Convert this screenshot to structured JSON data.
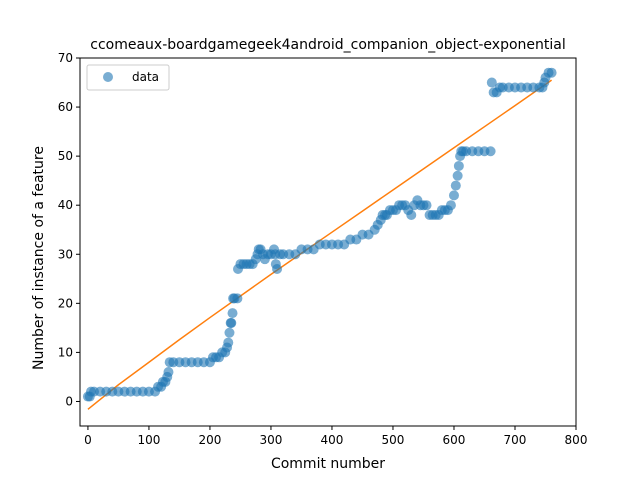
{
  "chart_data": {
    "type": "scatter",
    "title": "ccomeaux-boardgamegeek4android_companion_object-exponential",
    "xlabel": "Commit number",
    "ylabel": "Number of instance of a feature",
    "xlim": [
      -13,
      800
    ],
    "ylim": [
      -5,
      70
    ],
    "xticks": [
      0,
      100,
      200,
      300,
      400,
      500,
      600,
      700,
      800
    ],
    "yticks": [
      0,
      10,
      20,
      30,
      40,
      50,
      60,
      70
    ],
    "grid": false,
    "legend": {
      "position": "top-left",
      "entries": [
        "data"
      ]
    },
    "colors": {
      "scatter": "#1f77b4",
      "fit": "#ff7f0e"
    },
    "series": [
      {
        "name": "data",
        "kind": "scatter",
        "points": [
          [
            0,
            1
          ],
          [
            3,
            1
          ],
          [
            5,
            2
          ],
          [
            10,
            2
          ],
          [
            20,
            2
          ],
          [
            30,
            2
          ],
          [
            40,
            2
          ],
          [
            50,
            2
          ],
          [
            60,
            2
          ],
          [
            70,
            2
          ],
          [
            80,
            2
          ],
          [
            90,
            2
          ],
          [
            100,
            2
          ],
          [
            110,
            2
          ],
          [
            115,
            3
          ],
          [
            120,
            3
          ],
          [
            123,
            4
          ],
          [
            127,
            4
          ],
          [
            130,
            5
          ],
          [
            132,
            6
          ],
          [
            134,
            8
          ],
          [
            140,
            8
          ],
          [
            150,
            8
          ],
          [
            160,
            8
          ],
          [
            170,
            8
          ],
          [
            180,
            8
          ],
          [
            190,
            8
          ],
          [
            200,
            8
          ],
          [
            205,
            9
          ],
          [
            210,
            9
          ],
          [
            215,
            9
          ],
          [
            220,
            10
          ],
          [
            225,
            10
          ],
          [
            228,
            11
          ],
          [
            230,
            12
          ],
          [
            232,
            14
          ],
          [
            234,
            16
          ],
          [
            235,
            16
          ],
          [
            237,
            18
          ],
          [
            238,
            21
          ],
          [
            240,
            21
          ],
          [
            245,
            21
          ],
          [
            246,
            27
          ],
          [
            250,
            28
          ],
          [
            255,
            28
          ],
          [
            260,
            28
          ],
          [
            265,
            28
          ],
          [
            270,
            28
          ],
          [
            275,
            29
          ],
          [
            278,
            30
          ],
          [
            280,
            31
          ],
          [
            283,
            31
          ],
          [
            287,
            30
          ],
          [
            290,
            29
          ],
          [
            295,
            30
          ],
          [
            300,
            30
          ],
          [
            305,
            31
          ],
          [
            307,
            30
          ],
          [
            308,
            28
          ],
          [
            310,
            27
          ],
          [
            315,
            30
          ],
          [
            320,
            30
          ],
          [
            330,
            30
          ],
          [
            340,
            30
          ],
          [
            350,
            31
          ],
          [
            360,
            31
          ],
          [
            370,
            31
          ],
          [
            380,
            32
          ],
          [
            390,
            32
          ],
          [
            400,
            32
          ],
          [
            410,
            32
          ],
          [
            420,
            32
          ],
          [
            430,
            33
          ],
          [
            440,
            33
          ],
          [
            450,
            34
          ],
          [
            460,
            34
          ],
          [
            470,
            35
          ],
          [
            475,
            36
          ],
          [
            480,
            37
          ],
          [
            483,
            38
          ],
          [
            487,
            38
          ],
          [
            490,
            38
          ],
          [
            495,
            39
          ],
          [
            500,
            39
          ],
          [
            505,
            39
          ],
          [
            510,
            40
          ],
          [
            515,
            40
          ],
          [
            520,
            40
          ],
          [
            525,
            39
          ],
          [
            530,
            38
          ],
          [
            535,
            40
          ],
          [
            540,
            41
          ],
          [
            545,
            40
          ],
          [
            550,
            40
          ],
          [
            555,
            40
          ],
          [
            560,
            38
          ],
          [
            565,
            38
          ],
          [
            570,
            38
          ],
          [
            575,
            38
          ],
          [
            580,
            39
          ],
          [
            585,
            39
          ],
          [
            590,
            39
          ],
          [
            595,
            40
          ],
          [
            600,
            42
          ],
          [
            603,
            44
          ],
          [
            606,
            46
          ],
          [
            608,
            48
          ],
          [
            610,
            50
          ],
          [
            612,
            51
          ],
          [
            615,
            51
          ],
          [
            620,
            51
          ],
          [
            630,
            51
          ],
          [
            640,
            51
          ],
          [
            650,
            51
          ],
          [
            660,
            51
          ],
          [
            662,
            65
          ],
          [
            665,
            63
          ],
          [
            670,
            63
          ],
          [
            675,
            64
          ],
          [
            680,
            64
          ],
          [
            690,
            64
          ],
          [
            700,
            64
          ],
          [
            710,
            64
          ],
          [
            720,
            64
          ],
          [
            730,
            64
          ],
          [
            740,
            64
          ],
          [
            745,
            64
          ],
          [
            748,
            65
          ],
          [
            750,
            66
          ],
          [
            755,
            67
          ],
          [
            760,
            67
          ]
        ]
      },
      {
        "name": "",
        "kind": "line",
        "points": [
          [
            0,
            -1.6
          ],
          [
            50,
            3.4
          ],
          [
            100,
            8.0
          ],
          [
            150,
            12.6
          ],
          [
            200,
            17.1
          ],
          [
            250,
            21.5
          ],
          [
            300,
            25.9
          ],
          [
            350,
            30.2
          ],
          [
            400,
            34.5
          ],
          [
            450,
            38.8
          ],
          [
            500,
            43.1
          ],
          [
            550,
            47.4
          ],
          [
            600,
            51.7
          ],
          [
            650,
            56.0
          ],
          [
            700,
            60.3
          ],
          [
            760,
            65.5
          ]
        ]
      }
    ]
  }
}
